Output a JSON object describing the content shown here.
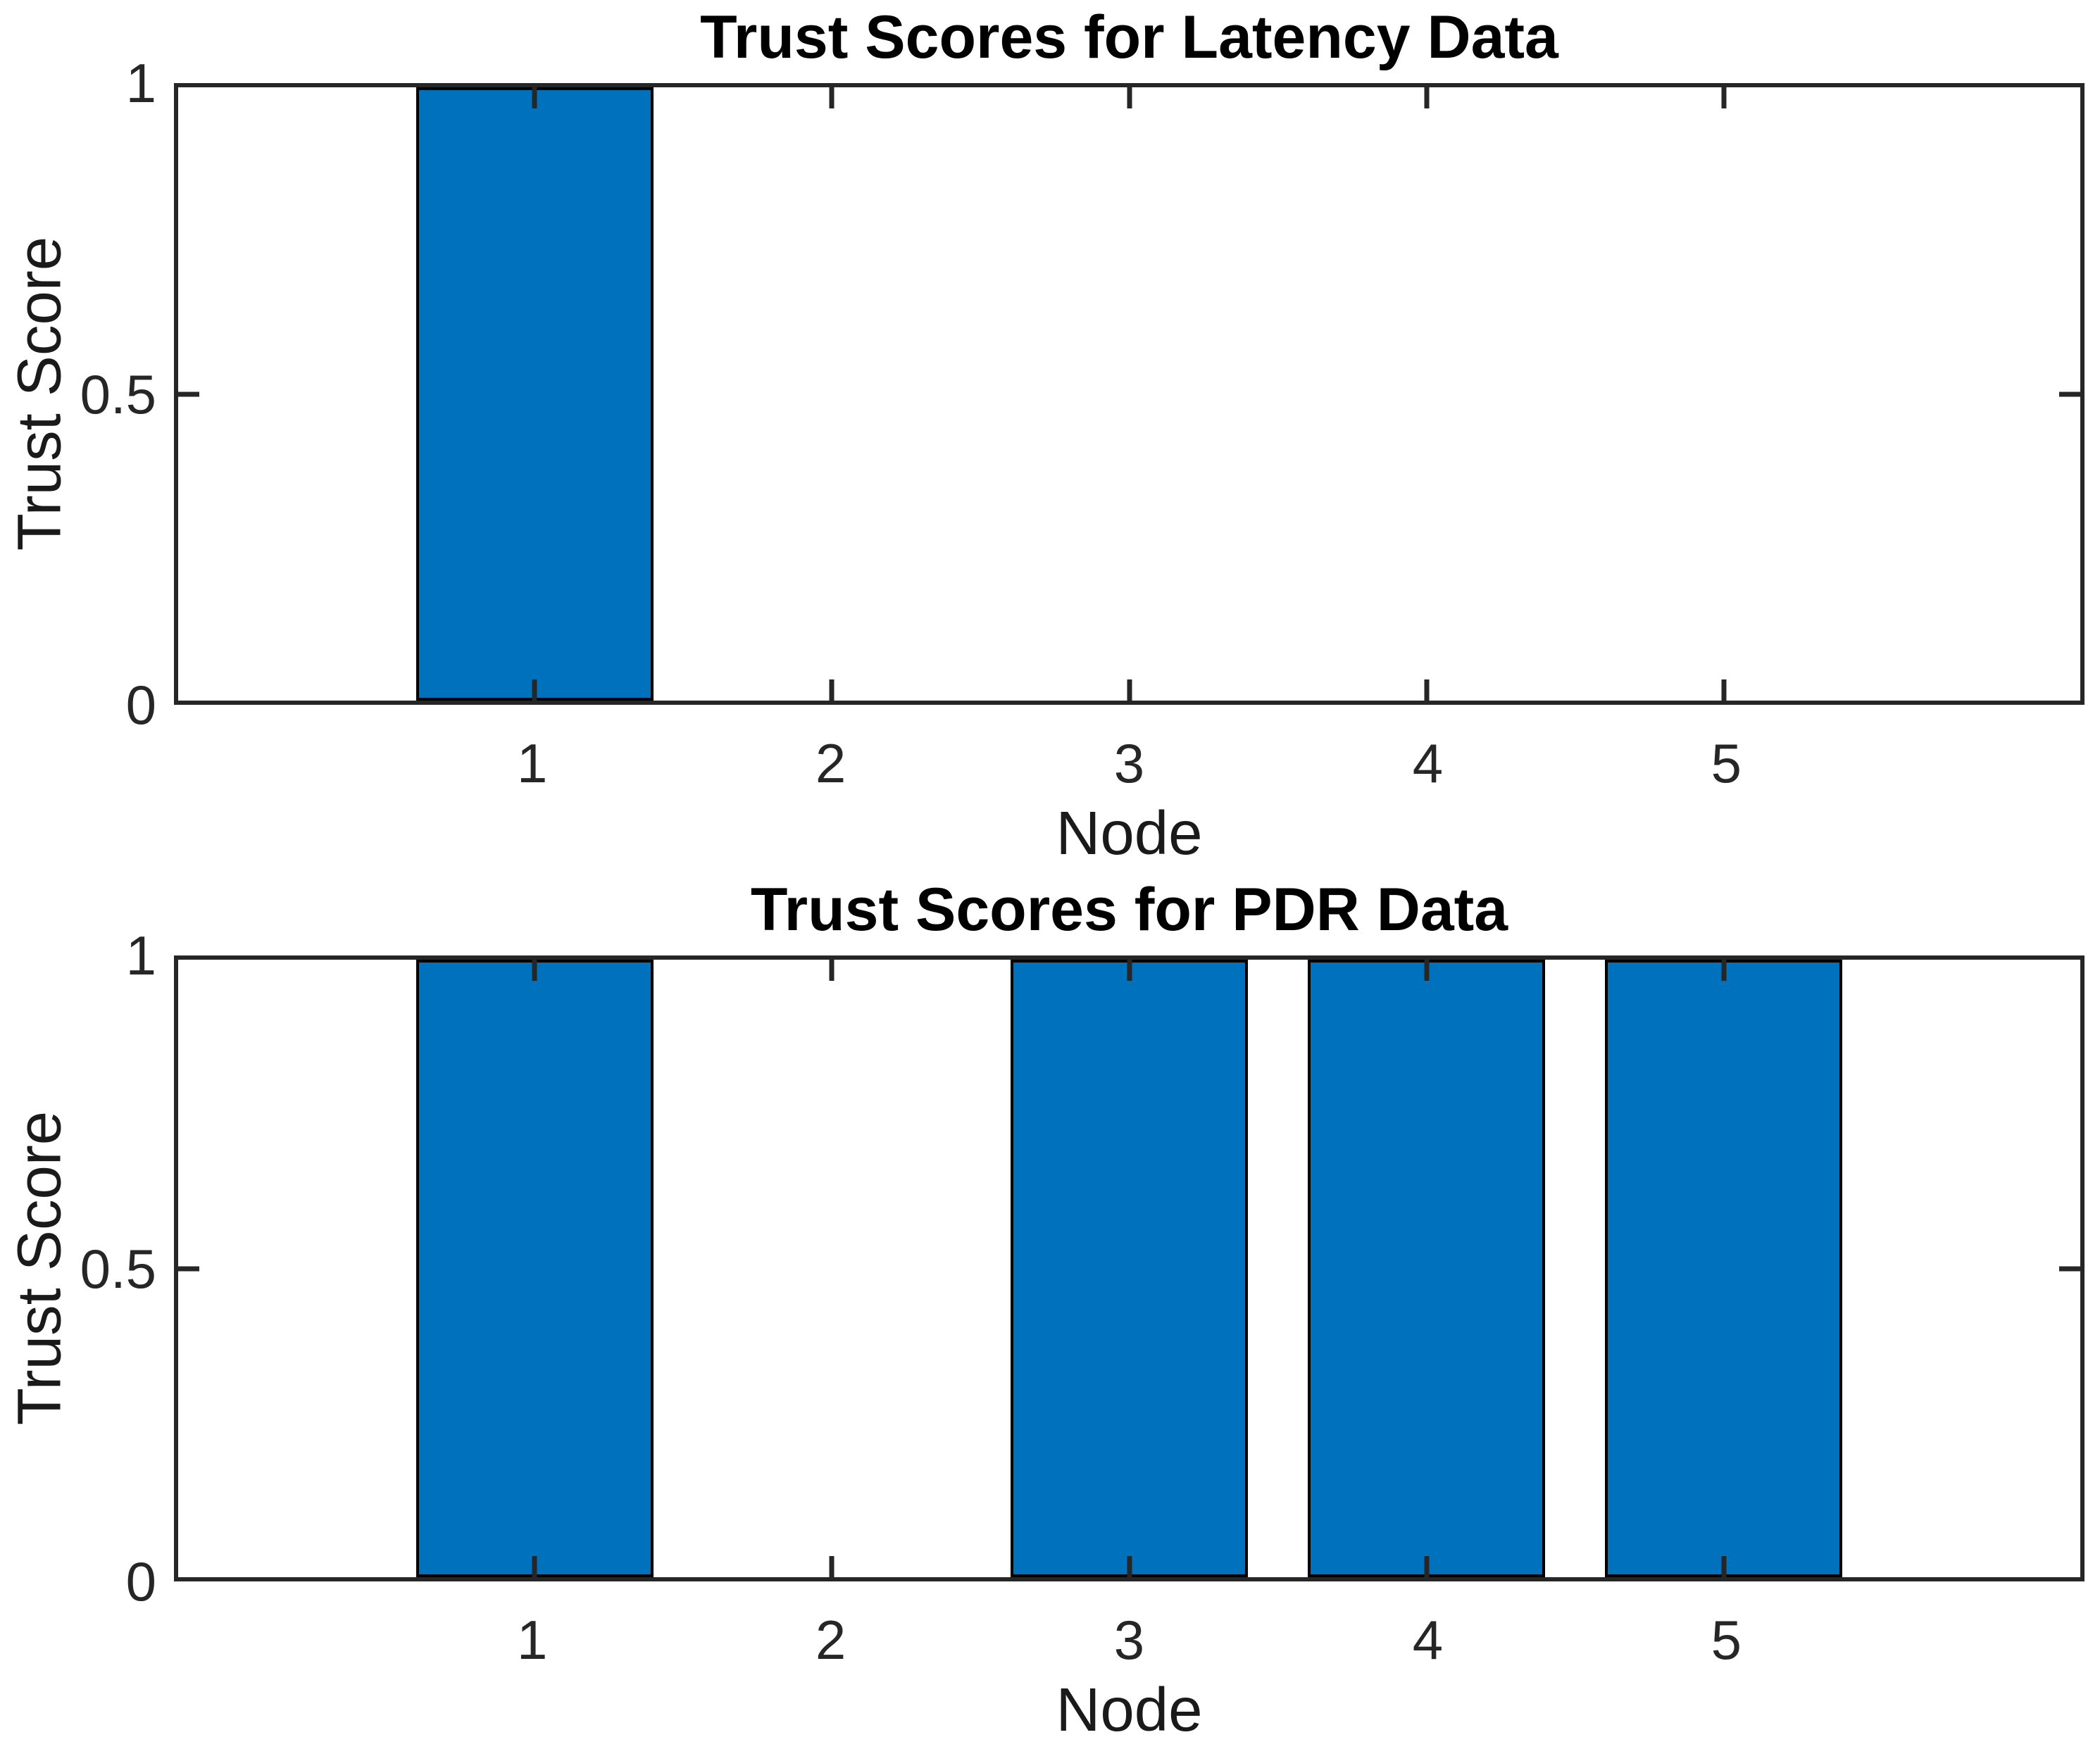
{
  "figure": {
    "background": "#ffffff",
    "axis_color": "#262626",
    "text_color": "#1a1a1a"
  },
  "chart_data": [
    {
      "type": "bar",
      "title": "Trust Scores for Latency Data",
      "xlabel": "Node",
      "ylabel": "Trust Score",
      "categories": [
        "1",
        "2",
        "3",
        "4",
        "5"
      ],
      "x": [
        1,
        2,
        3,
        4,
        5
      ],
      "values": [
        1,
        0,
        0,
        0,
        0
      ],
      "bar_width": 0.8,
      "xlim": [
        -0.2,
        6.2
      ],
      "ylim": [
        0,
        1
      ],
      "yticks": [
        0,
        0.5,
        1
      ],
      "ytick_labels": [
        "0",
        "0.5",
        "1"
      ],
      "bar_color": "#0072BD",
      "bar_edge_color": "#000000",
      "axis_color": "#262626",
      "grid": false,
      "legend": null
    },
    {
      "type": "bar",
      "title": "Trust Scores for PDR Data",
      "xlabel": "Node",
      "ylabel": "Trust Score",
      "categories": [
        "1",
        "2",
        "3",
        "4",
        "5"
      ],
      "x": [
        1,
        2,
        3,
        4,
        5
      ],
      "values": [
        1,
        0,
        1,
        1,
        1
      ],
      "bar_width": 0.8,
      "xlim": [
        -0.2,
        6.2
      ],
      "ylim": [
        0,
        1
      ],
      "yticks": [
        0,
        0.5,
        1
      ],
      "ytick_labels": [
        "0",
        "0.5",
        "1"
      ],
      "bar_color": "#0072BD",
      "bar_edge_color": "#000000",
      "axis_color": "#262626",
      "grid": false,
      "legend": null
    }
  ]
}
